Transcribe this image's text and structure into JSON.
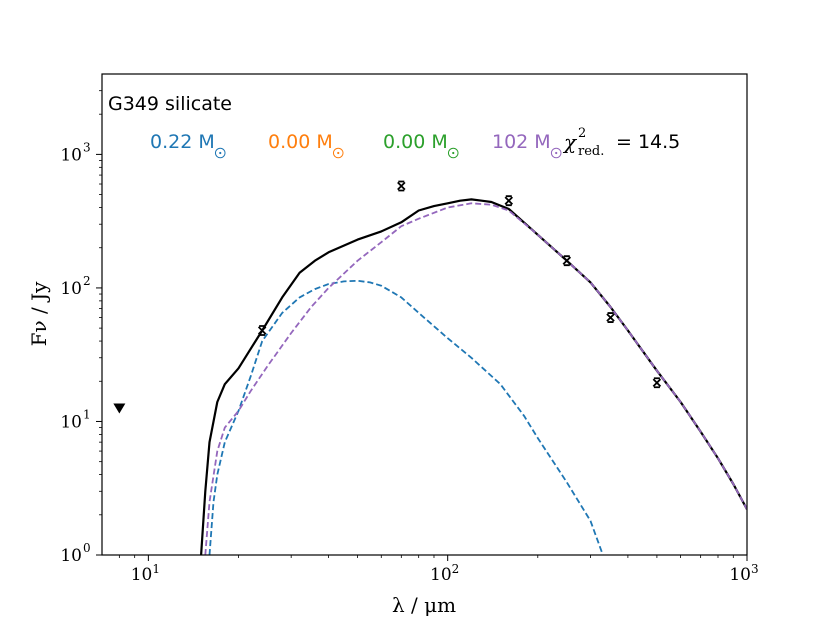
{
  "chart_data": {
    "type": "line",
    "scale": {
      "x": "log",
      "y": "log"
    },
    "title": "G349 silicate",
    "xlabel": "λ / μm",
    "ylabel": "Fν / Jy",
    "xlim": [
      7,
      1000
    ],
    "ylim": [
      1,
      4000
    ],
    "x_ticks": [
      {
        "value": 10,
        "base": "10",
        "exp": "1"
      },
      {
        "value": 100,
        "base": "10",
        "exp": "2"
      },
      {
        "value": 1000,
        "base": "10",
        "exp": "3"
      }
    ],
    "y_ticks": [
      {
        "value": 1,
        "base": "10",
        "exp": "0"
      },
      {
        "value": 10,
        "base": "10",
        "exp": "1"
      },
      {
        "value": 100,
        "base": "10",
        "exp": "2"
      },
      {
        "value": 1000,
        "base": "10",
        "exp": "3"
      }
    ],
    "components": [
      {
        "label": "0.22 M",
        "color": "#1f77b4"
      },
      {
        "label": "0.00 M",
        "color": "#ff7f0e"
      },
      {
        "label": "0.00 M",
        "color": "#2ca02c"
      },
      {
        "label": "102 M",
        "color": "#9467bd"
      }
    ],
    "chi2": {
      "symbol": "χ",
      "sup": "2",
      "sub": "red.",
      "value": "= 14.5"
    },
    "series": [
      {
        "name": "total",
        "color": "#000000",
        "dashed": false,
        "points": [
          [
            15,
            1
          ],
          [
            15.5,
            3
          ],
          [
            16,
            7
          ],
          [
            17,
            14
          ],
          [
            18,
            19
          ],
          [
            20,
            25
          ],
          [
            24,
            48
          ],
          [
            28,
            85
          ],
          [
            32,
            130
          ],
          [
            36,
            160
          ],
          [
            40,
            185
          ],
          [
            50,
            230
          ],
          [
            60,
            265
          ],
          [
            70,
            310
          ],
          [
            80,
            380
          ],
          [
            90,
            410
          ],
          [
            100,
            430
          ],
          [
            110,
            450
          ],
          [
            120,
            460
          ],
          [
            130,
            450
          ],
          [
            140,
            440
          ],
          [
            160,
            390
          ],
          [
            200,
            250
          ],
          [
            250,
            160
          ],
          [
            300,
            110
          ],
          [
            350,
            72
          ],
          [
            400,
            48
          ],
          [
            500,
            24
          ],
          [
            600,
            14
          ],
          [
            700,
            8.4
          ],
          [
            800,
            5.3
          ],
          [
            900,
            3.4
          ],
          [
            1000,
            2.2
          ]
        ]
      },
      {
        "name": "0.22 M component",
        "color": "#1f77b4",
        "dashed": true,
        "points": [
          [
            16,
            1
          ],
          [
            16.5,
            2.5
          ],
          [
            17,
            4
          ],
          [
            18,
            7
          ],
          [
            20,
            12
          ],
          [
            22,
            22
          ],
          [
            24,
            40
          ],
          [
            28,
            65
          ],
          [
            32,
            85
          ],
          [
            36,
            98
          ],
          [
            40,
            107
          ],
          [
            45,
            112
          ],
          [
            50,
            113
          ],
          [
            55,
            110
          ],
          [
            60,
            104
          ],
          [
            70,
            85
          ],
          [
            80,
            65
          ],
          [
            100,
            42
          ],
          [
            120,
            30
          ],
          [
            150,
            19
          ],
          [
            180,
            11
          ],
          [
            200,
            7.5
          ],
          [
            250,
            3.5
          ],
          [
            300,
            1.8
          ],
          [
            330,
            1
          ]
        ]
      },
      {
        "name": "102 M component",
        "color": "#9467bd",
        "dashed": true,
        "points": [
          [
            15.5,
            1
          ],
          [
            16,
            2.5
          ],
          [
            17,
            6
          ],
          [
            18,
            9
          ],
          [
            20,
            12
          ],
          [
            22,
            17
          ],
          [
            25,
            26
          ],
          [
            30,
            46
          ],
          [
            35,
            72
          ],
          [
            40,
            100
          ],
          [
            50,
            160
          ],
          [
            60,
            220
          ],
          [
            70,
            290
          ],
          [
            80,
            330
          ],
          [
            100,
            400
          ],
          [
            120,
            430
          ],
          [
            140,
            420
          ],
          [
            160,
            380
          ],
          [
            200,
            250
          ],
          [
            250,
            160
          ],
          [
            300,
            110
          ],
          [
            350,
            72
          ],
          [
            400,
            48
          ],
          [
            500,
            24
          ],
          [
            600,
            14
          ],
          [
            700,
            8.4
          ],
          [
            800,
            5.3
          ],
          [
            900,
            3.4
          ],
          [
            1000,
            2.2
          ]
        ]
      }
    ],
    "observations": [
      [
        24,
        48
      ],
      [
        70,
        580
      ],
      [
        160,
        450
      ],
      [
        250,
        160
      ],
      [
        350,
        60
      ],
      [
        500,
        19.5
      ]
    ],
    "upper_limits": [
      [
        8,
        12.5
      ]
    ]
  }
}
